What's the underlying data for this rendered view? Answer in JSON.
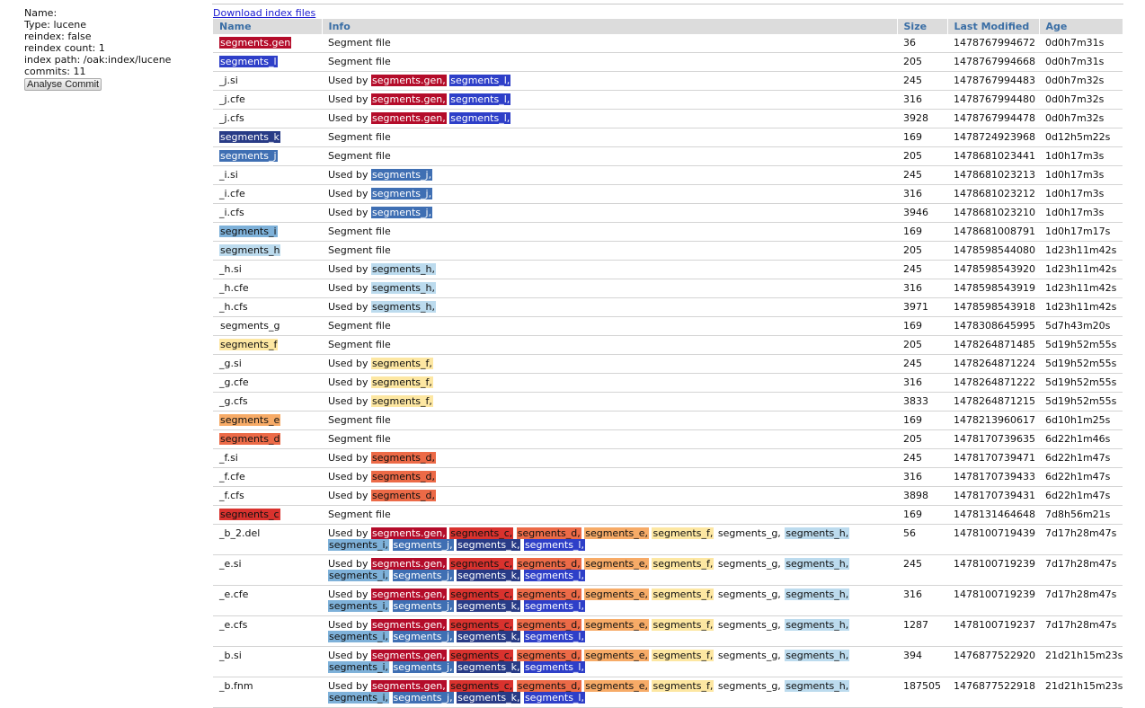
{
  "index_info": {
    "name_line": "Name:",
    "type_line": "Type: lucene",
    "reindex_line": "reindex: false",
    "reindex_count_line": "reindex count: 1",
    "index_path_line": "index path: /oak:index/lucene",
    "commits_line": "commits: 11",
    "analyse_button": "Analyse Commit"
  },
  "download_link": "Download index files",
  "columns": [
    "Name",
    "Info",
    "Size",
    "Last Modified",
    "Age"
  ],
  "used_by_label": "Used by",
  "colors": {
    "segments_gen": "#b40c2a",
    "segments_l": "#2e3fc8",
    "segments_k": "#283b86",
    "segments_j": "#3f6fb3",
    "segments_i": "#7eb1d9",
    "segments_h": "#bcdbee",
    "segments_g": "#ffffff",
    "segments_f": "#fde7a2",
    "segments_e": "#f7ab67",
    "segments_d": "#ec6a47",
    "segments_c": "#d9322e",
    "header_bg": "#dcdcdc",
    "header_text": "#3a6ea5",
    "link": "#1a1ad0"
  },
  "rows": [
    {
      "name": "segments.gen",
      "name_seg": "gen",
      "info": "Segment file",
      "used_by": [],
      "size": "36",
      "modified": "1478767994672",
      "age": "0d0h7m31s"
    },
    {
      "name": "segments_l",
      "name_seg": "l",
      "info": "Segment file",
      "used_by": [],
      "size": "205",
      "modified": "1478767994668",
      "age": "0d0h7m31s"
    },
    {
      "name": "_j.si",
      "name_seg": "",
      "info": "",
      "used_by": [
        {
          "t": "segments.gen,",
          "c": "gen"
        },
        {
          "t": "segments_l,",
          "c": "l"
        }
      ],
      "size": "245",
      "modified": "1478767994483",
      "age": "0d0h7m32s"
    },
    {
      "name": "_j.cfe",
      "name_seg": "",
      "info": "",
      "used_by": [
        {
          "t": "segments.gen,",
          "c": "gen"
        },
        {
          "t": "segments_l,",
          "c": "l"
        }
      ],
      "size": "316",
      "modified": "1478767994480",
      "age": "0d0h7m32s"
    },
    {
      "name": "_j.cfs",
      "name_seg": "",
      "info": "",
      "used_by": [
        {
          "t": "segments.gen,",
          "c": "gen"
        },
        {
          "t": "segments_l,",
          "c": "l"
        }
      ],
      "size": "3928",
      "modified": "1478767994478",
      "age": "0d0h7m32s"
    },
    {
      "name": "segments_k",
      "name_seg": "k",
      "info": "Segment file",
      "used_by": [],
      "size": "169",
      "modified": "1478724923968",
      "age": "0d12h5m22s"
    },
    {
      "name": "segments_j",
      "name_seg": "j",
      "info": "Segment file",
      "used_by": [],
      "size": "205",
      "modified": "1478681023441",
      "age": "1d0h17m3s"
    },
    {
      "name": "_i.si",
      "name_seg": "",
      "info": "",
      "used_by": [
        {
          "t": "segments_j,",
          "c": "j"
        }
      ],
      "size": "245",
      "modified": "1478681023213",
      "age": "1d0h17m3s"
    },
    {
      "name": "_i.cfe",
      "name_seg": "",
      "info": "",
      "used_by": [
        {
          "t": "segments_j,",
          "c": "j"
        }
      ],
      "size": "316",
      "modified": "1478681023212",
      "age": "1d0h17m3s"
    },
    {
      "name": "_i.cfs",
      "name_seg": "",
      "info": "",
      "used_by": [
        {
          "t": "segments_j,",
          "c": "j"
        }
      ],
      "size": "3946",
      "modified": "1478681023210",
      "age": "1d0h17m3s"
    },
    {
      "name": "segments_i",
      "name_seg": "i",
      "info": "Segment file",
      "used_by": [],
      "size": "169",
      "modified": "1478681008791",
      "age": "1d0h17m17s"
    },
    {
      "name": "segments_h",
      "name_seg": "h",
      "info": "Segment file",
      "used_by": [],
      "size": "205",
      "modified": "1478598544080",
      "age": "1d23h11m42s"
    },
    {
      "name": "_h.si",
      "name_seg": "",
      "info": "",
      "used_by": [
        {
          "t": "segments_h,",
          "c": "h"
        }
      ],
      "size": "245",
      "modified": "1478598543920",
      "age": "1d23h11m42s"
    },
    {
      "name": "_h.cfe",
      "name_seg": "",
      "info": "",
      "used_by": [
        {
          "t": "segments_h,",
          "c": "h"
        }
      ],
      "size": "316",
      "modified": "1478598543919",
      "age": "1d23h11m42s"
    },
    {
      "name": "_h.cfs",
      "name_seg": "",
      "info": "",
      "used_by": [
        {
          "t": "segments_h,",
          "c": "h"
        }
      ],
      "size": "3971",
      "modified": "1478598543918",
      "age": "1d23h11m42s"
    },
    {
      "name": "segments_g",
      "name_seg": "g",
      "info": "Segment file",
      "used_by": [],
      "size": "169",
      "modified": "1478308645995",
      "age": "5d7h43m20s"
    },
    {
      "name": "segments_f",
      "name_seg": "f",
      "info": "Segment file",
      "used_by": [],
      "size": "205",
      "modified": "1478264871485",
      "age": "5d19h52m55s"
    },
    {
      "name": "_g.si",
      "name_seg": "",
      "info": "",
      "used_by": [
        {
          "t": "segments_f,",
          "c": "f"
        }
      ],
      "size": "245",
      "modified": "1478264871224",
      "age": "5d19h52m55s"
    },
    {
      "name": "_g.cfe",
      "name_seg": "",
      "info": "",
      "used_by": [
        {
          "t": "segments_f,",
          "c": "f"
        }
      ],
      "size": "316",
      "modified": "1478264871222",
      "age": "5d19h52m55s"
    },
    {
      "name": "_g.cfs",
      "name_seg": "",
      "info": "",
      "used_by": [
        {
          "t": "segments_f,",
          "c": "f"
        }
      ],
      "size": "3833",
      "modified": "1478264871215",
      "age": "5d19h52m55s"
    },
    {
      "name": "segments_e",
      "name_seg": "e",
      "info": "Segment file",
      "used_by": [],
      "size": "169",
      "modified": "1478213960617",
      "age": "6d10h1m25s"
    },
    {
      "name": "segments_d",
      "name_seg": "d",
      "info": "Segment file",
      "used_by": [],
      "size": "205",
      "modified": "1478170739635",
      "age": "6d22h1m46s"
    },
    {
      "name": "_f.si",
      "name_seg": "",
      "info": "",
      "used_by": [
        {
          "t": "segments_d,",
          "c": "d"
        }
      ],
      "size": "245",
      "modified": "1478170739471",
      "age": "6d22h1m47s"
    },
    {
      "name": "_f.cfe",
      "name_seg": "",
      "info": "",
      "used_by": [
        {
          "t": "segments_d,",
          "c": "d"
        }
      ],
      "size": "316",
      "modified": "1478170739433",
      "age": "6d22h1m47s"
    },
    {
      "name": "_f.cfs",
      "name_seg": "",
      "info": "",
      "used_by": [
        {
          "t": "segments_d,",
          "c": "d"
        }
      ],
      "size": "3898",
      "modified": "1478170739431",
      "age": "6d22h1m47s"
    },
    {
      "name": "segments_c",
      "name_seg": "c",
      "info": "Segment file",
      "used_by": [],
      "size": "169",
      "modified": "1478131464648",
      "age": "7d8h56m21s"
    },
    {
      "name": "_b_2.del",
      "name_seg": "",
      "info": "",
      "used_by": [
        {
          "t": "segments.gen,",
          "c": "gen"
        },
        {
          "t": "segments_c,",
          "c": "c"
        },
        {
          "t": "segments_d,",
          "c": "d"
        },
        {
          "t": "segments_e,",
          "c": "e"
        },
        {
          "t": "segments_f,",
          "c": "f"
        },
        {
          "t": "segments_g,",
          "c": "g"
        },
        {
          "t": "segments_h,",
          "c": "h"
        },
        {
          "t": "segments_i,",
          "c": "i"
        },
        {
          "t": "segments_j,",
          "c": "j"
        },
        {
          "t": "segments_k,",
          "c": "k"
        },
        {
          "t": "segments_l,",
          "c": "l"
        }
      ],
      "size": "56",
      "modified": "1478100719439",
      "age": "7d17h28m47s"
    },
    {
      "name": "_e.si",
      "name_seg": "",
      "info": "",
      "used_by": [
        {
          "t": "segments.gen,",
          "c": "gen"
        },
        {
          "t": "segments_c,",
          "c": "c"
        },
        {
          "t": "segments_d,",
          "c": "d"
        },
        {
          "t": "segments_e,",
          "c": "e"
        },
        {
          "t": "segments_f,",
          "c": "f"
        },
        {
          "t": "segments_g,",
          "c": "g"
        },
        {
          "t": "segments_h,",
          "c": "h"
        },
        {
          "t": "segments_i,",
          "c": "i"
        },
        {
          "t": "segments_j,",
          "c": "j"
        },
        {
          "t": "segments_k,",
          "c": "k"
        },
        {
          "t": "segments_l,",
          "c": "l"
        }
      ],
      "size": "245",
      "modified": "1478100719239",
      "age": "7d17h28m47s"
    },
    {
      "name": "_e.cfe",
      "name_seg": "",
      "info": "",
      "used_by": [
        {
          "t": "segments.gen,",
          "c": "gen"
        },
        {
          "t": "segments_c,",
          "c": "c"
        },
        {
          "t": "segments_d,",
          "c": "d"
        },
        {
          "t": "segments_e,",
          "c": "e"
        },
        {
          "t": "segments_f,",
          "c": "f"
        },
        {
          "t": "segments_g,",
          "c": "g"
        },
        {
          "t": "segments_h,",
          "c": "h"
        },
        {
          "t": "segments_i,",
          "c": "i"
        },
        {
          "t": "segments_j,",
          "c": "j"
        },
        {
          "t": "segments_k,",
          "c": "k"
        },
        {
          "t": "segments_l,",
          "c": "l"
        }
      ],
      "size": "316",
      "modified": "1478100719239",
      "age": "7d17h28m47s"
    },
    {
      "name": "_e.cfs",
      "name_seg": "",
      "info": "",
      "used_by": [
        {
          "t": "segments.gen,",
          "c": "gen"
        },
        {
          "t": "segments_c,",
          "c": "c"
        },
        {
          "t": "segments_d,",
          "c": "d"
        },
        {
          "t": "segments_e,",
          "c": "e"
        },
        {
          "t": "segments_f,",
          "c": "f"
        },
        {
          "t": "segments_g,",
          "c": "g"
        },
        {
          "t": "segments_h,",
          "c": "h"
        },
        {
          "t": "segments_i,",
          "c": "i"
        },
        {
          "t": "segments_j,",
          "c": "j"
        },
        {
          "t": "segments_k,",
          "c": "k"
        },
        {
          "t": "segments_l,",
          "c": "l"
        }
      ],
      "size": "1287",
      "modified": "1478100719237",
      "age": "7d17h28m47s"
    },
    {
      "name": "_b.si",
      "name_seg": "",
      "info": "",
      "used_by": [
        {
          "t": "segments.gen,",
          "c": "gen"
        },
        {
          "t": "segments_c,",
          "c": "c"
        },
        {
          "t": "segments_d,",
          "c": "d"
        },
        {
          "t": "segments_e,",
          "c": "e"
        },
        {
          "t": "segments_f,",
          "c": "f"
        },
        {
          "t": "segments_g,",
          "c": "g"
        },
        {
          "t": "segments_h,",
          "c": "h"
        },
        {
          "t": "segments_i,",
          "c": "i"
        },
        {
          "t": "segments_j,",
          "c": "j"
        },
        {
          "t": "segments_k,",
          "c": "k"
        },
        {
          "t": "segments_l,",
          "c": "l"
        }
      ],
      "size": "394",
      "modified": "1476877522920",
      "age": "21d21h15m23s"
    },
    {
      "name": "_b.fnm",
      "name_seg": "",
      "info": "",
      "used_by": [
        {
          "t": "segments.gen,",
          "c": "gen"
        },
        {
          "t": "segments_c,",
          "c": "c"
        },
        {
          "t": "segments_d,",
          "c": "d"
        },
        {
          "t": "segments_e,",
          "c": "e"
        },
        {
          "t": "segments_f,",
          "c": "f"
        },
        {
          "t": "segments_g,",
          "c": "g"
        },
        {
          "t": "segments_h,",
          "c": "h"
        },
        {
          "t": "segments_i,",
          "c": "i"
        },
        {
          "t": "segments_j,",
          "c": "j"
        },
        {
          "t": "segments_k,",
          "c": "k"
        },
        {
          "t": "segments_l,",
          "c": "l"
        }
      ],
      "size": "187505",
      "modified": "1476877522918",
      "age": "21d21h15m23s"
    }
  ]
}
